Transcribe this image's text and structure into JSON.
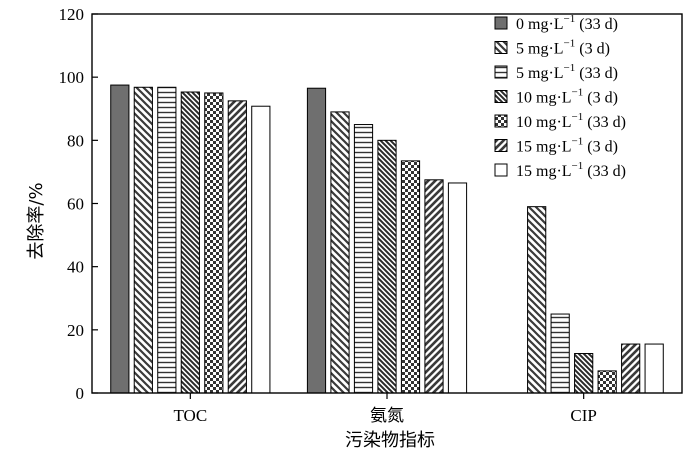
{
  "chart_data": {
    "type": "bar",
    "title": "",
    "xlabel": "污染物指标",
    "ylabel": "去除率/%",
    "ylim": [
      0,
      120
    ],
    "yticks": [
      0,
      20,
      40,
      60,
      80,
      100,
      120
    ],
    "categories": [
      "TOC",
      "氨氮",
      "CIP"
    ],
    "legend_position": "top-right",
    "series": [
      {
        "name": "0 mg·L−1 (33 d)",
        "legend_prefix": "0 mg·L",
        "legend_sup": "−1",
        "legend_suffix": " (33 d)",
        "pattern": "solid-gray",
        "values": [
          97.5,
          96.5,
          0
        ]
      },
      {
        "name": "5 mg·L−1 (3 d)",
        "legend_prefix": "5 mg·L",
        "legend_sup": "−1",
        "legend_suffix": " (3 d)",
        "pattern": "backslash-diagonal",
        "values": [
          96.8,
          89,
          59
        ]
      },
      {
        "name": "5 mg·L−1 (33 d)",
        "legend_prefix": "5 mg·L",
        "legend_sup": "−1",
        "legend_suffix": " (33 d)",
        "pattern": "horizontal-lines",
        "values": [
          96.8,
          85,
          25
        ]
      },
      {
        "name": "10 mg·L−1 (3 d)",
        "legend_prefix": "10 mg·L",
        "legend_sup": "−1",
        "legend_suffix": " (3 d)",
        "pattern": "dense-backslash",
        "values": [
          95.3,
          80,
          12.5
        ]
      },
      {
        "name": "10 mg·L−1 (33 d)",
        "legend_prefix": "10 mg·L",
        "legend_sup": "−1",
        "legend_suffix": " (33 d)",
        "pattern": "checkerboard",
        "values": [
          95,
          73.5,
          7
        ]
      },
      {
        "name": "15 mg·L−1 (3 d)",
        "legend_prefix": "15 mg·L",
        "legend_sup": "−1",
        "legend_suffix": " (3 d)",
        "pattern": "forward-diagonal",
        "values": [
          92.5,
          67.5,
          15.5
        ]
      },
      {
        "name": "15 mg·L−1 (33 d)",
        "legend_prefix": "15 mg·L",
        "legend_sup": "−1",
        "legend_suffix": " (33 d)",
        "pattern": "white",
        "values": [
          90.8,
          66.5,
          15.5
        ]
      }
    ]
  }
}
